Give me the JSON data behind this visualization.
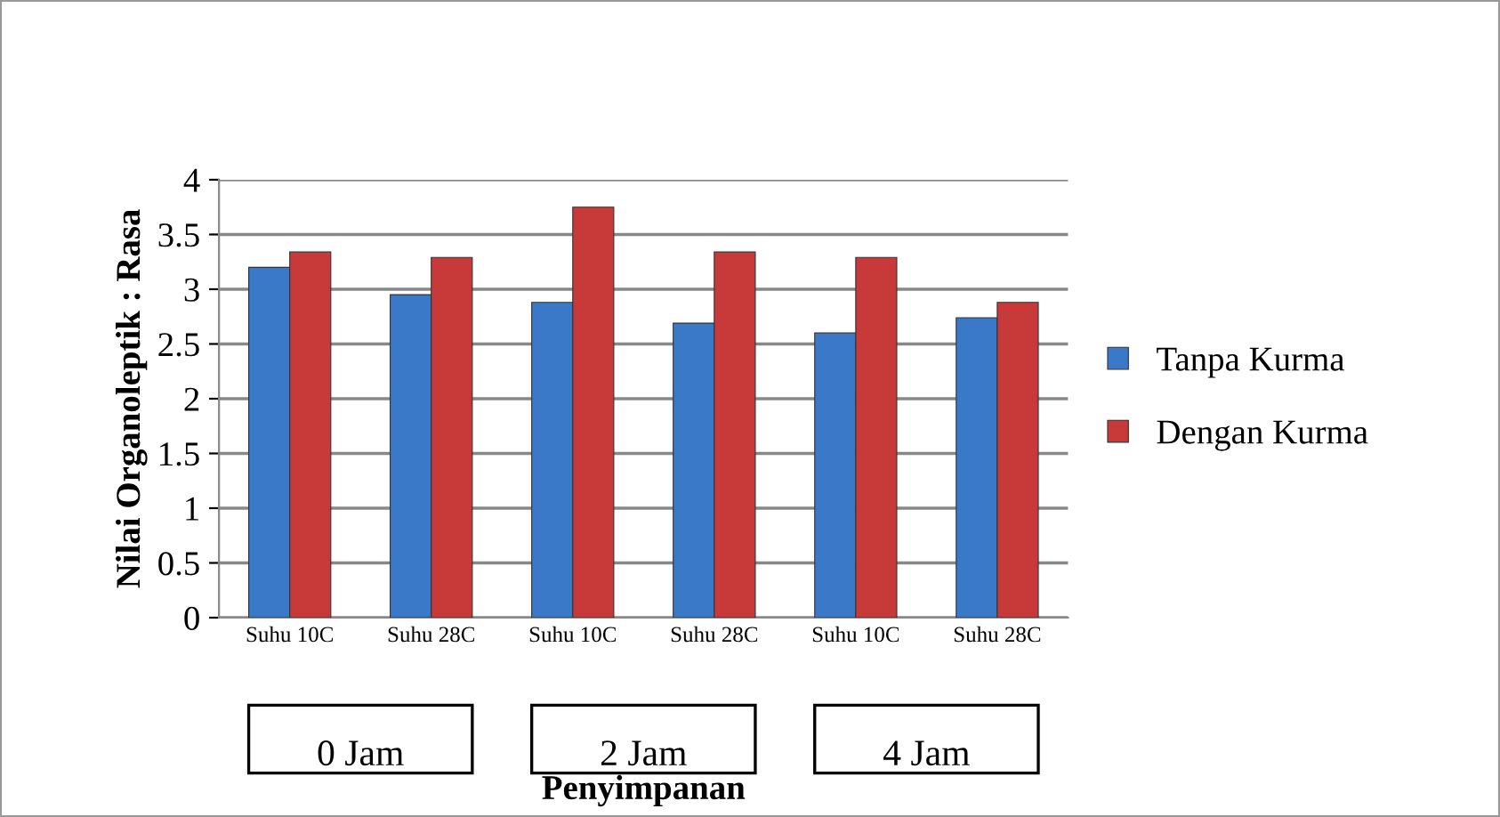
{
  "chart_data": {
    "type": "bar",
    "ylabel": "Nilai Organoleptik : Rasa",
    "xlabel": "Penyimpanan",
    "categories": [
      "Suhu 10C",
      "Suhu 28C",
      "Suhu 10C",
      "Suhu 28C",
      "Suhu 10C",
      "Suhu 28C"
    ],
    "series": [
      {
        "name": "Tanpa Kurma",
        "color": "#3a78c8",
        "values": [
          3.2,
          2.95,
          2.88,
          2.69,
          2.6,
          2.74
        ]
      },
      {
        "name": "Dengan Kurma",
        "color": "#c83a3a",
        "values": [
          3.34,
          3.29,
          3.75,
          3.34,
          3.29,
          2.88
        ]
      }
    ],
    "annotations": [
      "0 Jam",
      "2 Jam",
      "4 Jam"
    ],
    "ylim": [
      0,
      4
    ],
    "yticks": [
      0,
      0.5,
      1,
      1.5,
      2,
      2.5,
      3,
      3.5,
      4
    ],
    "grid": "y",
    "legend": "right"
  }
}
